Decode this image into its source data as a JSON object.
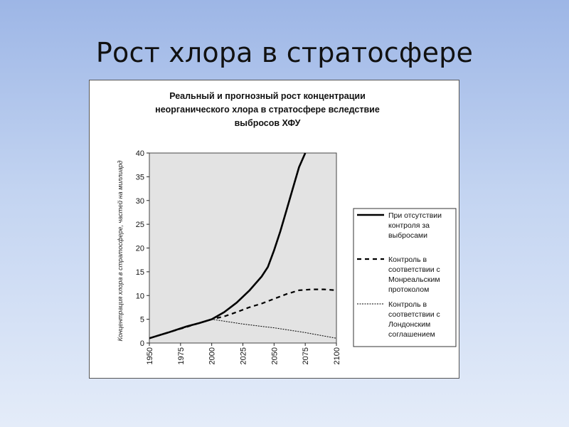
{
  "slide": {
    "title": "Рост хлора в стратосфере"
  },
  "chart_data": {
    "type": "line",
    "title_lines": [
      "Реальный и прогнозный рост концентрации",
      "неорганического хлора в стратосфере вследствие",
      "выбросов ХФУ"
    ],
    "xlabel": "",
    "ylabel": "Концентрация хлора в стратосфере, частей на миллиард",
    "xlim": [
      1950,
      2100
    ],
    "ylim": [
      0,
      40
    ],
    "x_ticks": [
      "1950",
      "1975",
      "2000",
      "2025",
      "2050",
      "2075",
      "2100"
    ],
    "y_ticks": [
      "0",
      "5",
      "10",
      "15",
      "20",
      "25",
      "30",
      "35",
      "40"
    ],
    "grid": false,
    "legend_position": "right",
    "plot_background": "#e3e3e3",
    "series": [
      {
        "name_lines": [
          "При отсутствии",
          "контроля за",
          "выбросами"
        ],
        "style": "solid-thick",
        "color": "#000000",
        "x": [
          1950,
          1965,
          1980,
          1990,
          2000,
          2010,
          2020,
          2030,
          2040,
          2045,
          2050,
          2055,
          2060,
          2065,
          2070,
          2075
        ],
        "y": [
          1,
          2.2,
          3.5,
          4.2,
          5,
          6.5,
          8.5,
          11,
          14,
          16,
          19.5,
          23.5,
          28,
          32.5,
          37,
          40
        ]
      },
      {
        "name_lines": [
          "Контроль в",
          "соответствии с",
          "Монреальским",
          "протоколом"
        ],
        "style": "dashed",
        "color": "#000000",
        "x": [
          1950,
          1975,
          2000,
          2010,
          2020,
          2030,
          2040,
          2050,
          2060,
          2070,
          2080,
          2090,
          2100
        ],
        "y": [
          1,
          3,
          5,
          5.6,
          6.5,
          7.5,
          8.3,
          9.3,
          10.3,
          11.1,
          11.3,
          11.3,
          11.1
        ]
      },
      {
        "name_lines": [
          "Контроль в",
          "соответствии с",
          "Лондонским",
          "соглашением"
        ],
        "style": "dotted-thin",
        "color": "#000000",
        "x": [
          1950,
          1975,
          2000,
          2010,
          2025,
          2040,
          2050,
          2075,
          2100
        ],
        "y": [
          1,
          3,
          5,
          4.6,
          4.0,
          3.5,
          3.2,
          2.2,
          1
        ]
      }
    ]
  }
}
